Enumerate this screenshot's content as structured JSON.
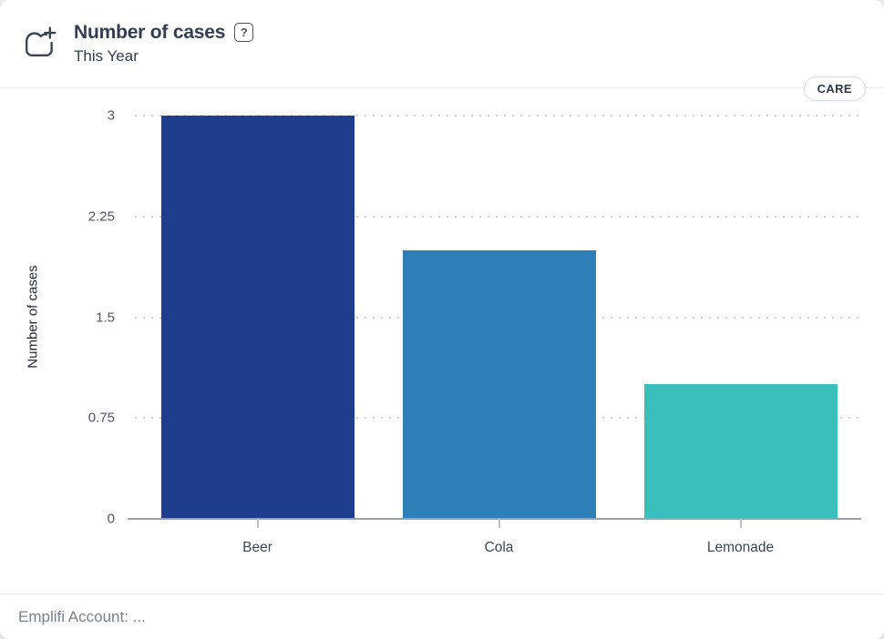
{
  "header": {
    "title": "Number of cases",
    "subtitle": "This Year",
    "help_icon": "?",
    "badge": "CARE"
  },
  "footer": {
    "text": "Emplifi Account: ..."
  },
  "colors": {
    "bar_beer": "#1e3d8c",
    "bar_cola": "#2f80b8",
    "bar_lemonade": "#3bbfbc",
    "axis_line": "#99a1b0",
    "gridline": "#ccd1d8"
  },
  "chart_data": {
    "type": "bar",
    "title": "Number of cases",
    "subtitle": "This Year",
    "categories": [
      "Beer",
      "Cola",
      "Lemonade"
    ],
    "values": [
      3,
      2,
      1
    ],
    "bar_colors": [
      "#1e3d8c",
      "#2f80b8",
      "#3bbfbc"
    ],
    "xlabel": "",
    "ylabel": "Number of cases",
    "ylim": [
      0,
      3
    ],
    "yticks": [
      0,
      0.75,
      1.5,
      2.25,
      3
    ],
    "grid": "horizontal-dotted",
    "legend": "none"
  }
}
